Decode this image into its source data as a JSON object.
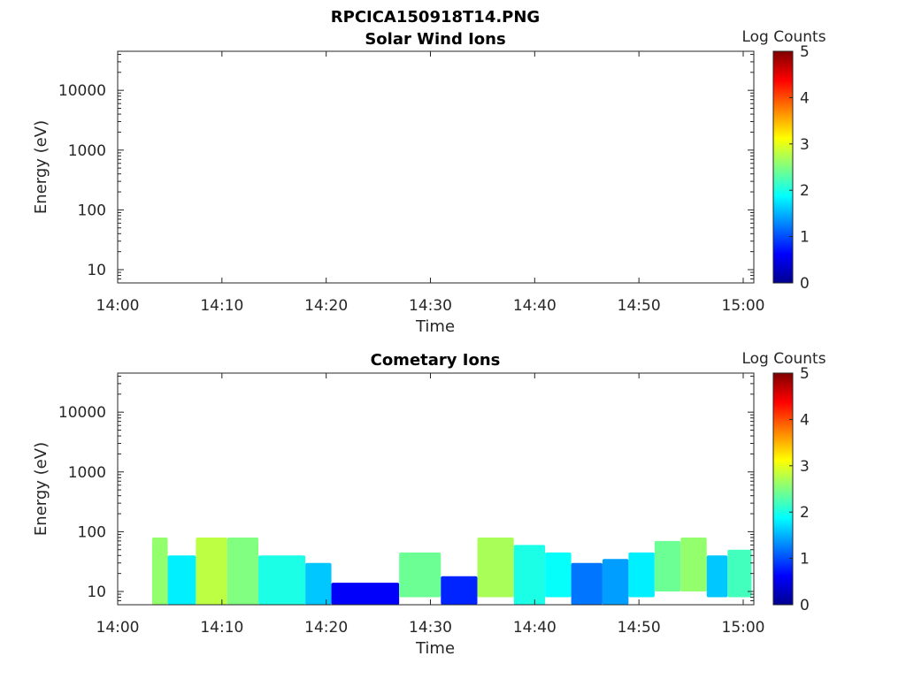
{
  "figure": {
    "title": "RPCICA150918T14.PNG"
  },
  "chart_data": [
    {
      "type": "heatmap",
      "title": "Solar Wind Ions",
      "xlabel": "Time",
      "ylabel": "Energy (eV)",
      "x_ticks": [
        "14:00",
        "14:10",
        "14:20",
        "14:30",
        "14:40",
        "14:50",
        "15:00"
      ],
      "y_ticks": [
        "10",
        "100",
        "1000",
        "10000"
      ],
      "y_scale": "log",
      "xlim": [
        "14:00",
        "15:00"
      ],
      "ylim": [
        6,
        45000
      ],
      "colorbar": {
        "label": "Log Counts",
        "ticks": [
          "0",
          "1",
          "2",
          "3",
          "4",
          "5"
        ],
        "range": [
          0,
          5
        ],
        "colormap": "jet"
      },
      "blobs": []
    },
    {
      "type": "heatmap",
      "title": "Cometary Ions",
      "xlabel": "Time",
      "ylabel": "Energy (eV)",
      "x_ticks": [
        "14:00",
        "14:10",
        "14:20",
        "14:30",
        "14:40",
        "14:50",
        "15:00"
      ],
      "y_ticks": [
        "10",
        "100",
        "1000",
        "10000"
      ],
      "y_scale": "log",
      "xlim": [
        "14:00",
        "15:00"
      ],
      "ylim": [
        6,
        45000
      ],
      "colorbar": {
        "label": "Log Counts",
        "ticks": [
          "0",
          "1",
          "2",
          "3",
          "4",
          "5"
        ],
        "range": [
          0,
          5
        ],
        "colormap": "jet"
      },
      "data_time_range_min": [
        3.3,
        60.8
      ],
      "data_energy_range_ev": [
        6,
        80
      ],
      "blobs": [
        {
          "t0": 3.3,
          "t1": 4.8,
          "e0": 6,
          "e1": 80,
          "peak_e": 22,
          "level": 2.6
        },
        {
          "t0": 4.8,
          "t1": 7.5,
          "e0": 6,
          "e1": 40,
          "peak_e": 18,
          "level": 1.8
        },
        {
          "t0": 7.5,
          "t1": 10.5,
          "e0": 6,
          "e1": 80,
          "peak_e": 25,
          "level": 2.8
        },
        {
          "t0": 10.5,
          "t1": 13.5,
          "e0": 6,
          "e1": 80,
          "peak_e": 22,
          "level": 2.5
        },
        {
          "t0": 13.5,
          "t1": 18.0,
          "e0": 6,
          "e1": 40,
          "peak_e": 18,
          "level": 2.0
        },
        {
          "t0": 18.0,
          "t1": 20.5,
          "e0": 6,
          "e1": 30,
          "peak_e": 15,
          "level": 1.6
        },
        {
          "t0": 20.5,
          "t1": 27.0,
          "e0": 6,
          "e1": 14,
          "peak_e": 9,
          "level": 0.6
        },
        {
          "t0": 27.0,
          "t1": 31.0,
          "e0": 8,
          "e1": 45,
          "peak_e": 20,
          "level": 2.4
        },
        {
          "t0": 31.0,
          "t1": 34.5,
          "e0": 6,
          "e1": 18,
          "peak_e": 11,
          "level": 0.8
        },
        {
          "t0": 34.5,
          "t1": 38.0,
          "e0": 8,
          "e1": 80,
          "peak_e": 30,
          "level": 2.7
        },
        {
          "t0": 38.0,
          "t1": 41.0,
          "e0": 6,
          "e1": 60,
          "peak_e": 22,
          "level": 2.0
        },
        {
          "t0": 41.0,
          "t1": 43.5,
          "e0": 8,
          "e1": 45,
          "peak_e": 20,
          "level": 1.9
        },
        {
          "t0": 43.5,
          "t1": 46.5,
          "e0": 6,
          "e1": 30,
          "peak_e": 15,
          "level": 1.2
        },
        {
          "t0": 46.5,
          "t1": 49.0,
          "e0": 6,
          "e1": 35,
          "peak_e": 17,
          "level": 1.4
        },
        {
          "t0": 49.0,
          "t1": 51.5,
          "e0": 8,
          "e1": 45,
          "peak_e": 22,
          "level": 1.8
        },
        {
          "t0": 51.5,
          "t1": 54.0,
          "e0": 10,
          "e1": 70,
          "peak_e": 32,
          "level": 2.4
        },
        {
          "t0": 54.0,
          "t1": 56.5,
          "e0": 10,
          "e1": 80,
          "peak_e": 35,
          "level": 2.6
        },
        {
          "t0": 56.5,
          "t1": 58.5,
          "e0": 8,
          "e1": 40,
          "peak_e": 18,
          "level": 1.6
        },
        {
          "t0": 58.5,
          "t1": 60.8,
          "e0": 8,
          "e1": 50,
          "peak_e": 22,
          "level": 2.2
        }
      ]
    }
  ]
}
